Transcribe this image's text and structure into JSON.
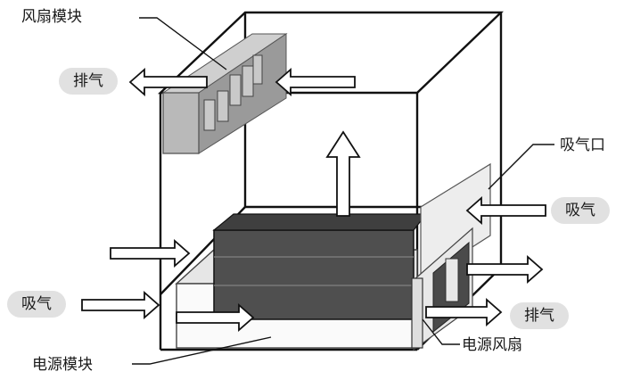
{
  "labels": {
    "fan_module": "风扇模块",
    "exhaust_top": "排气",
    "intake_port": "吸气口",
    "intake_right": "吸气",
    "intake_left": "吸气",
    "exhaust_right": "排气",
    "power_module": "电源模块",
    "power_fan": "电源风扇"
  },
  "colors": {
    "line": "#111111",
    "module_fill": "#b9b9b9",
    "dark_block": "#4f4f4f",
    "pill": "#e1e1e1",
    "arrow_fill": "#ffffff"
  }
}
